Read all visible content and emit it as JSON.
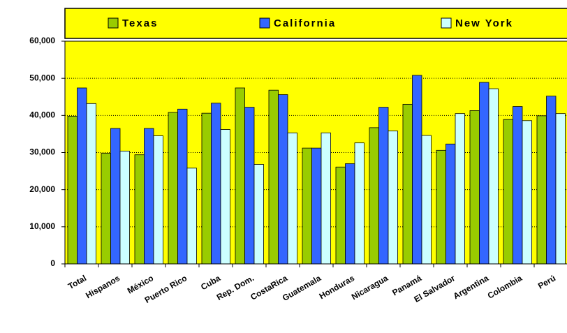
{
  "chart_data": {
    "type": "bar",
    "categories": [
      "Total",
      "Hispanos",
      "México",
      "Puerto Rico",
      "Cuba",
      "Rep. Dom.",
      "CostaRica",
      "Guatemala",
      "Honduras",
      "Nicaragua",
      "Panamá",
      "El Salvador",
      "Argentina",
      "Colombia",
      "Perú"
    ],
    "series": [
      {
        "name": "Texas",
        "color": "#99cc00",
        "values": [
          39800,
          29800,
          29400,
          40800,
          40600,
          47400,
          46800,
          31200,
          26100,
          36700,
          43000,
          30600,
          41300,
          38900,
          39900
        ]
      },
      {
        "name": "California",
        "color": "#3366ff",
        "values": [
          47400,
          36500,
          36500,
          41700,
          43300,
          42200,
          45600,
          31200,
          27000,
          42200,
          50800,
          32300,
          48900,
          42400,
          45200
        ]
      },
      {
        "name": "New York",
        "color": "#ccffff",
        "values": [
          43200,
          30400,
          34500,
          25800,
          36200,
          26800,
          35300,
          35300,
          32600,
          35800,
          34600,
          40500,
          47200,
          38600,
          40500
        ]
      }
    ],
    "ylim": [
      0,
      60000
    ],
    "yticks": [
      0,
      {
        "value": 10000,
        "label": "10,000"
      },
      {
        "value": 20000,
        "label": "20,000"
      },
      {
        "value": 30000,
        "label": "30,000"
      },
      {
        "value": 40000,
        "label": "40,000"
      },
      {
        "value": 50000,
        "label": "50,000"
      },
      {
        "value": 60000,
        "label": "60,000"
      }
    ],
    "grid": true,
    "legend": "top"
  }
}
